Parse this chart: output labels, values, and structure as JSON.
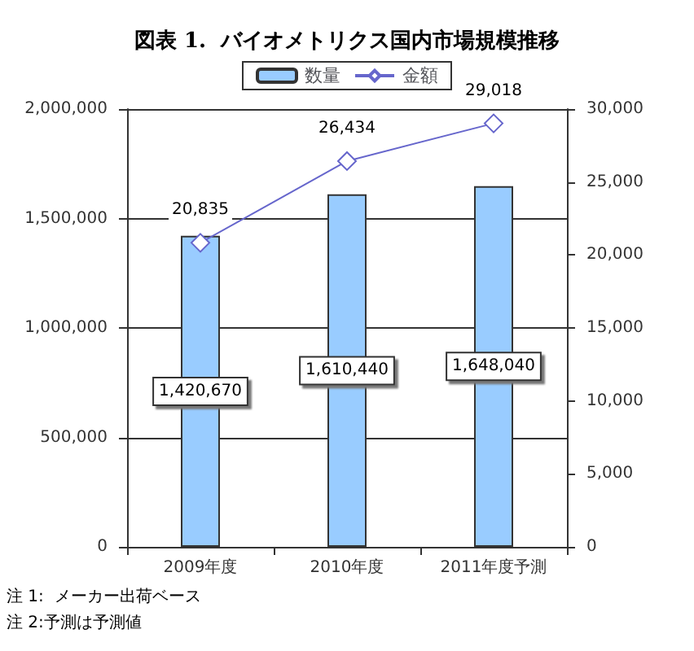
{
  "chart_data": {
    "type": "bar",
    "title": "図表 1.  バイオメトリクス国内市場規模推移",
    "categories": [
      "2009年度",
      "2010年度",
      "2011年度予測"
    ],
    "series": [
      {
        "name": "数量",
        "color": "#99ccff",
        "values": [
          1420670,
          1610440,
          1648040
        ],
        "value_labels": [
          "1,420,670",
          "1,610,440",
          "1,648,040"
        ]
      },
      {
        "name": "金額",
        "type": "line",
        "axis": "y2",
        "color": "#6666cc",
        "marker": "diamond",
        "values": [
          20835,
          26434,
          29018
        ],
        "value_labels": [
          "20,835",
          "26,434",
          "29,018"
        ]
      }
    ],
    "ylim": [
      0,
      2000000
    ],
    "yticks": [
      0,
      {
        "value": 500000,
        "label": "500,000"
      },
      {
        "value": 1000000,
        "label": "1,000,000"
      },
      {
        "value": 1500000,
        "label": "1,500,000"
      },
      {
        "value": 2000000,
        "label": "2,000,000"
      }
    ],
    "y2lim": [
      0,
      30000
    ],
    "y2ticks": [
      0,
      {
        "value": 5000,
        "label": "5,000"
      },
      {
        "value": 10000,
        "label": "10,000"
      },
      {
        "value": 15000,
        "label": "15,000"
      },
      {
        "value": 20000,
        "label": "20,000"
      },
      {
        "value": 25000,
        "label": "25,000"
      },
      {
        "value": 30000,
        "label": "30,000"
      }
    ],
    "grid": "y",
    "legend": "top",
    "annotations": [
      "注 1:  メーカー出荷ベース",
      "注 2:予測は予測値"
    ]
  }
}
